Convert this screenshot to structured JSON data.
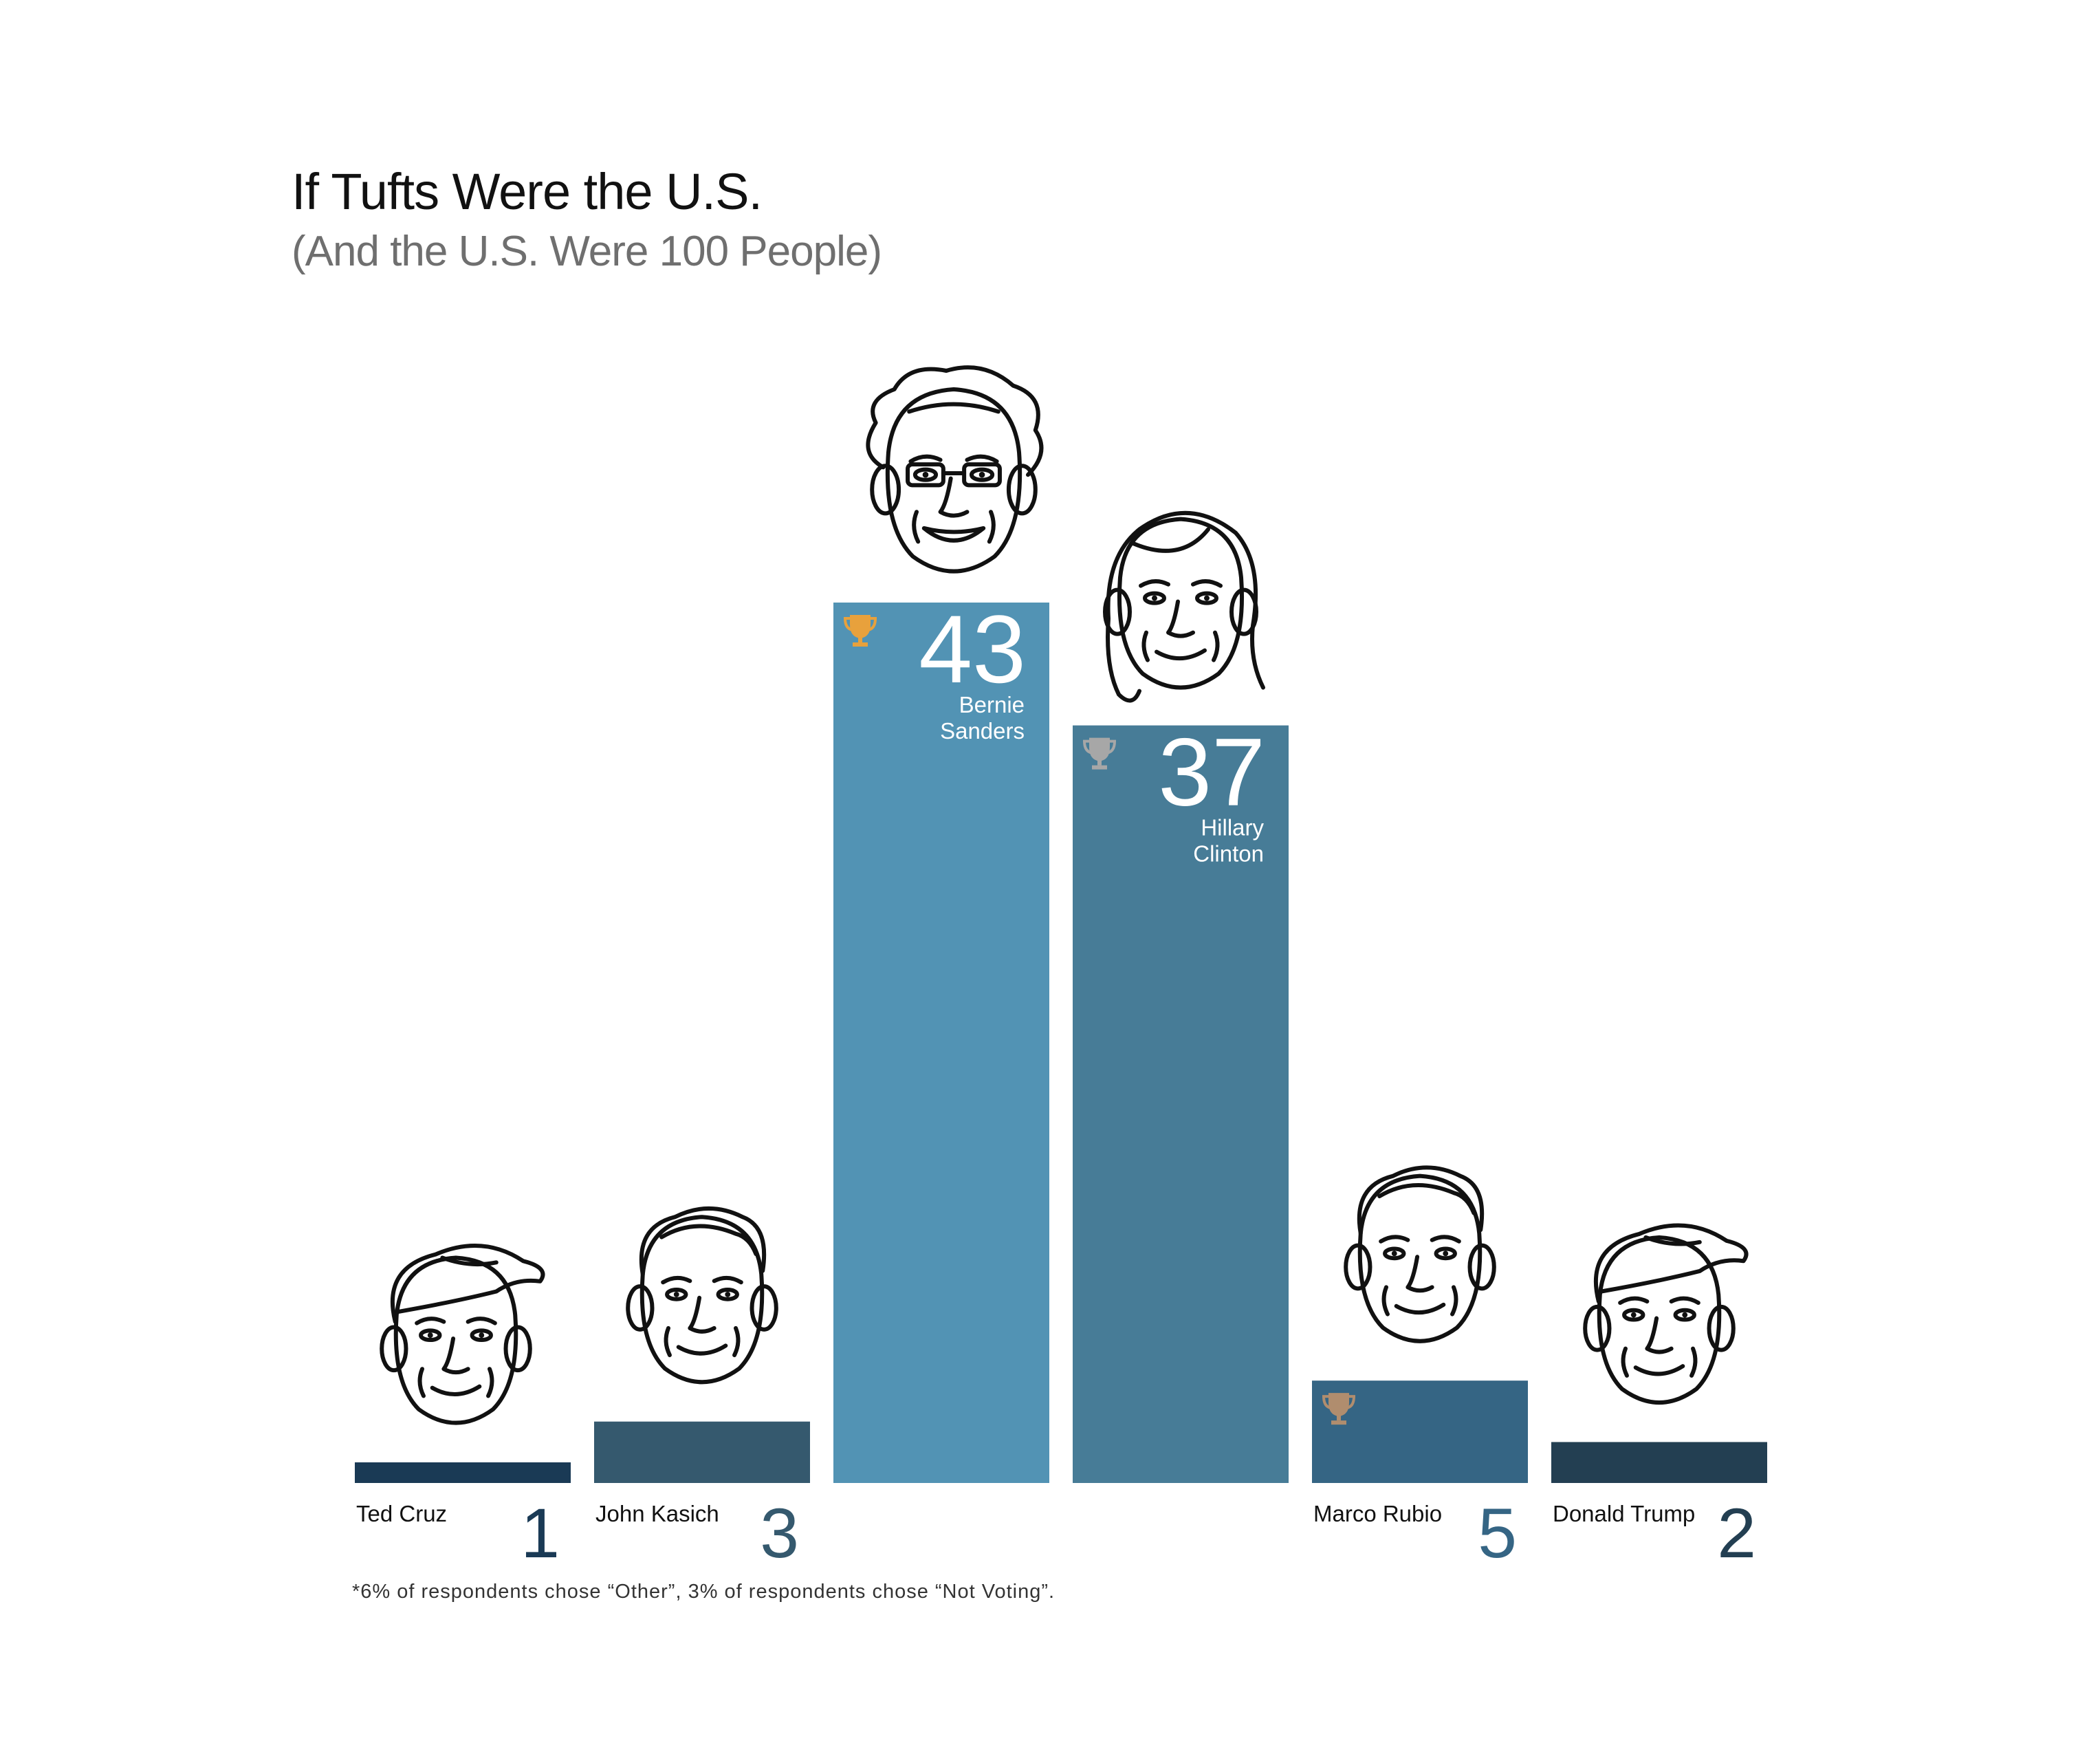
{
  "title": "If Tufts Were the U.S.",
  "subtitle": "(And the U.S. Were 100 People)",
  "footnote": "*6% of respondents chose “Other”, 3% of respondents chose “Not Voting”.",
  "chart_data": {
    "type": "bar",
    "title": "If Tufts Were the U.S.",
    "subtitle": "(And the U.S. Were 100 People)",
    "categories": [
      "Ted Cruz",
      "John Kasich",
      "Bernie Sanders",
      "Hillary Clinton",
      "Marco Rubio",
      "Donald Trump"
    ],
    "values": [
      1,
      3,
      43,
      37,
      5,
      2
    ],
    "bars": [
      {
        "name": "Ted Cruz",
        "label_lines": [
          "Ted Cruz"
        ],
        "value": 1,
        "color": "#1a3a55",
        "trophy": null,
        "label_position": "below"
      },
      {
        "name": "John Kasich",
        "label_lines": [
          "John Kasich"
        ],
        "value": 3,
        "color": "#35596e",
        "trophy": null,
        "label_position": "below"
      },
      {
        "name": "Bernie Sanders",
        "label_lines": [
          "Bernie",
          "Sanders"
        ],
        "value": 43,
        "color": "#5293b4",
        "trophy": "#e8a13c",
        "label_position": "inside"
      },
      {
        "name": "Hillary Clinton",
        "label_lines": [
          "Hillary",
          "Clinton"
        ],
        "value": 37,
        "color": "#477c97",
        "trophy": "#a7a7a7",
        "label_position": "inside"
      },
      {
        "name": "Marco Rubio",
        "label_lines": [
          "Marco Rubio"
        ],
        "value": 5,
        "color": "#356584",
        "trophy": "#b08d6e",
        "label_position": "below"
      },
      {
        "name": "Donald Trump",
        "label_lines": [
          "Donald Trump"
        ],
        "value": 2,
        "color": "#233f52",
        "trophy": null,
        "label_position": "below"
      }
    ],
    "ylim": [
      0,
      43
    ],
    "xlabel": "",
    "ylabel": "",
    "grid": false,
    "legend": "none",
    "label_color_outside": "#111111",
    "label_color_inside": "#ffffff"
  }
}
